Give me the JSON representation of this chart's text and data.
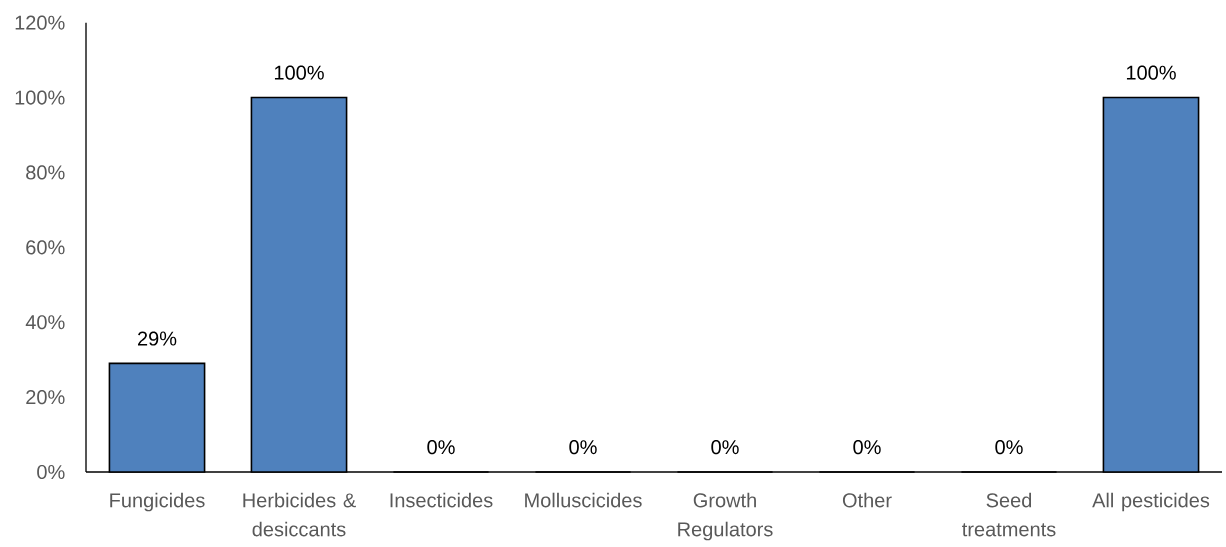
{
  "chart_data": {
    "type": "bar",
    "categories": [
      "Fungicides",
      "Herbicides & desiccants",
      "Insecticides",
      "Molluscicides",
      "Growth Regulators",
      "Other",
      "Seed treatments",
      "All pesticides"
    ],
    "values": [
      29,
      100,
      0,
      0,
      0,
      0,
      0,
      100
    ],
    "value_labels": [
      "29%",
      "100%",
      "0%",
      "0%",
      "0%",
      "0%",
      "0%",
      "100%"
    ],
    "color": "#4f81bd",
    "ylim": [
      0,
      120
    ],
    "yticks": [
      {
        "value": 0,
        "label": "0%"
      },
      {
        "value": 20,
        "label": "20%"
      },
      {
        "value": 40,
        "label": "40%"
      },
      {
        "value": 60,
        "label": "60%"
      },
      {
        "value": 80,
        "label": "80%"
      },
      {
        "value": 100,
        "label": "100%"
      },
      {
        "value": 120,
        "label": "120%"
      }
    ]
  }
}
